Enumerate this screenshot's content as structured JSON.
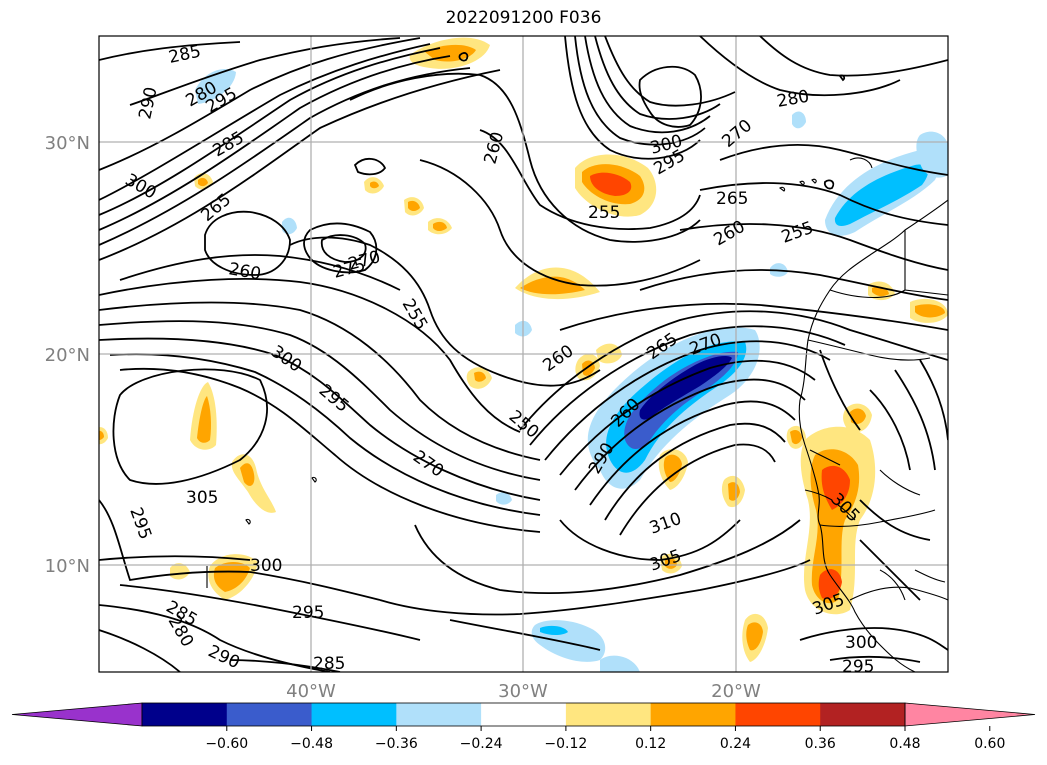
{
  "title": "2022091200 F036",
  "axes": {
    "lat_ticks": [
      "30°N",
      "20°N",
      "10°N"
    ],
    "lon_ticks": [
      "40°W",
      "30°W",
      "20°W"
    ]
  },
  "contour_labels": [
    "285",
    "290",
    "295",
    "280",
    "285",
    "300",
    "265",
    "260",
    "275",
    "270",
    "255",
    "260",
    "300",
    "295",
    "250",
    "270",
    "305",
    "295",
    "300",
    "295",
    "285",
    "280",
    "290",
    "285",
    "260",
    "300",
    "295",
    "270",
    "265",
    "255",
    "260",
    "255",
    "280",
    "270",
    "265",
    "260",
    "290",
    "310",
    "305",
    "305",
    "305",
    "300",
    "295"
  ],
  "colorbar": {
    "ticks": [
      "−0.60",
      "−0.48",
      "−0.36",
      "−0.24",
      "−0.12",
      "0.12",
      "0.24",
      "0.36",
      "0.48",
      "0.60"
    ],
    "colors": [
      "#9932cc",
      "#00008b",
      "#3a5ccc",
      "#00bfff",
      "#b0e0fa",
      "#ffffff",
      "#ffe680",
      "#ffa500",
      "#ff4500",
      "#b22222",
      "#ff85a2"
    ]
  }
}
